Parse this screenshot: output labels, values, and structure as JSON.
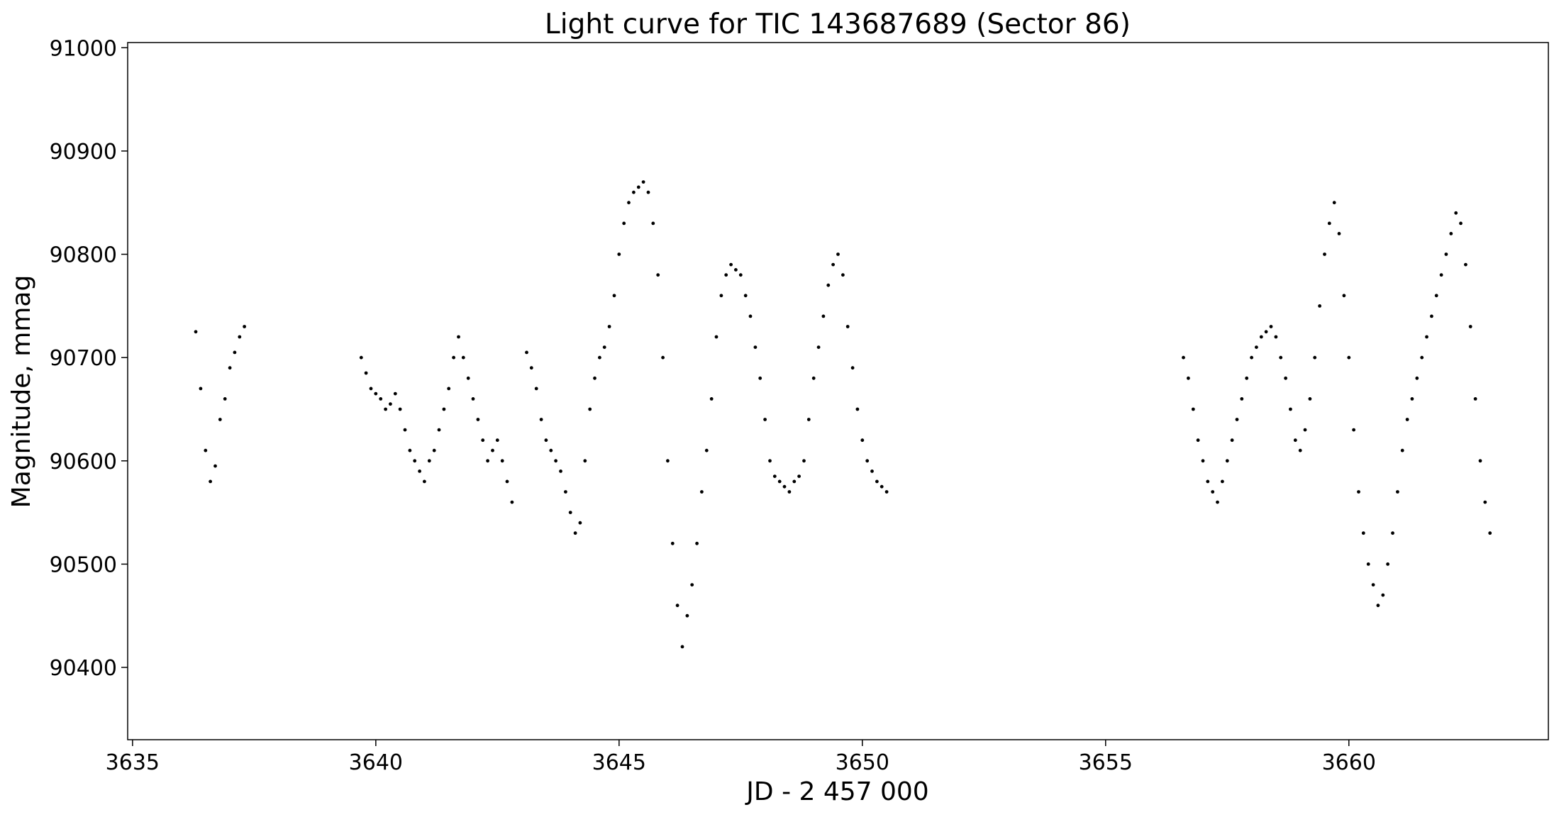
{
  "chart_data": {
    "type": "scatter",
    "title": "Light curve for TIC 143687689 (Sector 86)",
    "xlabel": "JD - 2 457 000",
    "ylabel": "Magnitude, mmag",
    "xlim": [
      3634.9,
      3664.1
    ],
    "ylim": [
      90330,
      91005
    ],
    "grid": false,
    "legend": "none",
    "point_color": "#000000",
    "x_ticks": [
      {
        "value": 3635,
        "label": "3635"
      },
      {
        "value": 3640,
        "label": "3640"
      },
      {
        "value": 3645,
        "label": "3645"
      },
      {
        "value": 3650,
        "label": "3650"
      },
      {
        "value": 3655,
        "label": "3655"
      },
      {
        "value": 3660,
        "label": "3660"
      }
    ],
    "y_ticks": [
      {
        "value": 90400,
        "label": "90400"
      },
      {
        "value": 90500,
        "label": "90500"
      },
      {
        "value": 90600,
        "label": "90600"
      },
      {
        "value": 90700,
        "label": "90700"
      },
      {
        "value": 90800,
        "label": "90800"
      },
      {
        "value": 90900,
        "label": "90900"
      },
      {
        "value": 91000,
        "label": "91000"
      }
    ],
    "series": [
      {
        "marker": "dot",
        "x": [
          3636.3,
          3636.4,
          3636.5,
          3636.6,
          3636.7,
          3636.8,
          3636.9,
          3637.0,
          3637.1,
          3637.2,
          3637.3,
          3639.7,
          3639.8,
          3639.9,
          3640.0,
          3640.1,
          3640.2,
          3640.3,
          3640.4,
          3640.5,
          3640.6,
          3640.7,
          3640.8,
          3640.9,
          3641.0,
          3641.1,
          3641.2,
          3641.3,
          3641.4,
          3641.5,
          3641.6,
          3641.7,
          3641.8,
          3641.9,
          3642.0,
          3642.1,
          3642.2,
          3642.3,
          3642.4,
          3642.5,
          3642.6,
          3642.7,
          3642.8,
          3643.1,
          3643.2,
          3643.3,
          3643.4,
          3643.5,
          3643.6,
          3643.7,
          3643.8,
          3643.9,
          3644.0,
          3644.1,
          3644.2,
          3644.3,
          3644.4,
          3644.5,
          3644.6,
          3644.7,
          3644.8,
          3644.9,
          3645.0,
          3645.1,
          3645.2,
          3645.3,
          3645.4,
          3645.5,
          3645.6,
          3645.7,
          3645.8,
          3645.9,
          3646.0,
          3646.1,
          3646.2,
          3646.3,
          3646.4,
          3646.5,
          3646.6,
          3646.7,
          3646.8,
          3646.9,
          3647.0,
          3647.1,
          3647.2,
          3647.3,
          3647.4,
          3647.5,
          3647.6,
          3647.7,
          3647.8,
          3647.9,
          3648.0,
          3648.1,
          3648.2,
          3648.3,
          3648.4,
          3648.5,
          3648.6,
          3648.7,
          3648.8,
          3648.9,
          3649.0,
          3649.1,
          3649.2,
          3649.3,
          3649.4,
          3649.5,
          3649.6,
          3649.7,
          3649.8,
          3649.9,
          3650.0,
          3650.1,
          3650.2,
          3650.3,
          3650.4,
          3650.5,
          3656.6,
          3656.7,
          3656.8,
          3656.9,
          3657.0,
          3657.1,
          3657.2,
          3657.3,
          3657.4,
          3657.5,
          3657.6,
          3657.7,
          3657.8,
          3657.9,
          3658.0,
          3658.1,
          3658.2,
          3658.3,
          3658.4,
          3658.5,
          3658.6,
          3658.7,
          3658.8,
          3658.9,
          3659.0,
          3659.1,
          3659.2,
          3659.3,
          3659.4,
          3659.5,
          3659.6,
          3659.7,
          3659.8,
          3659.9,
          3660.0,
          3660.1,
          3660.2,
          3660.3,
          3660.4,
          3660.5,
          3660.6,
          3660.7,
          3660.8,
          3660.9,
          3661.0,
          3661.1,
          3661.2,
          3661.3,
          3661.4,
          3661.5,
          3661.6,
          3661.7,
          3661.8,
          3661.9,
          3662.0,
          3662.1,
          3662.2,
          3662.3,
          3662.4,
          3662.5,
          3662.6,
          3662.7,
          3662.8,
          3662.9
        ],
        "y": [
          90725,
          90670,
          90610,
          90580,
          90595,
          90640,
          90660,
          90690,
          90705,
          90720,
          90730,
          90700,
          90685,
          90670,
          90665,
          90660,
          90650,
          90655,
          90665,
          90650,
          90630,
          90610,
          90600,
          90590,
          90580,
          90600,
          90610,
          90630,
          90650,
          90670,
          90700,
          90720,
          90700,
          90680,
          90660,
          90640,
          90620,
          90600,
          90610,
          90620,
          90600,
          90580,
          90560,
          90705,
          90690,
          90670,
          90640,
          90620,
          90610,
          90600,
          90590,
          90570,
          90550,
          90530,
          90540,
          90600,
          90650,
          90680,
          90700,
          90710,
          90730,
          90760,
          90800,
          90830,
          90850,
          90860,
          90865,
          90870,
          90860,
          90830,
          90780,
          90700,
          90600,
          90520,
          90460,
          90420,
          90450,
          90480,
          90520,
          90570,
          90610,
          90660,
          90720,
          90760,
          90780,
          90790,
          90785,
          90780,
          90760,
          90740,
          90710,
          90680,
          90640,
          90600,
          90585,
          90580,
          90575,
          90570,
          90580,
          90585,
          90600,
          90640,
          90680,
          90710,
          90740,
          90770,
          90790,
          90800,
          90780,
          90730,
          90690,
          90650,
          90620,
          90600,
          90590,
          90580,
          90575,
          90570,
          90700,
          90680,
          90650,
          90620,
          90600,
          90580,
          90570,
          90560,
          90580,
          90600,
          90620,
          90640,
          90660,
          90680,
          90700,
          90710,
          90720,
          90725,
          90730,
          90720,
          90700,
          90680,
          90650,
          90620,
          90610,
          90630,
          90660,
          90700,
          90750,
          90800,
          90830,
          90850,
          90820,
          90760,
          90700,
          90630,
          90570,
          90530,
          90500,
          90480,
          90460,
          90470,
          90500,
          90530,
          90570,
          90610,
          90640,
          90660,
          90680,
          90700,
          90720,
          90740,
          90760,
          90780,
          90800,
          90820,
          90840,
          90830,
          90790,
          90730,
          90660,
          90600,
          90560,
          90530
        ]
      }
    ]
  }
}
